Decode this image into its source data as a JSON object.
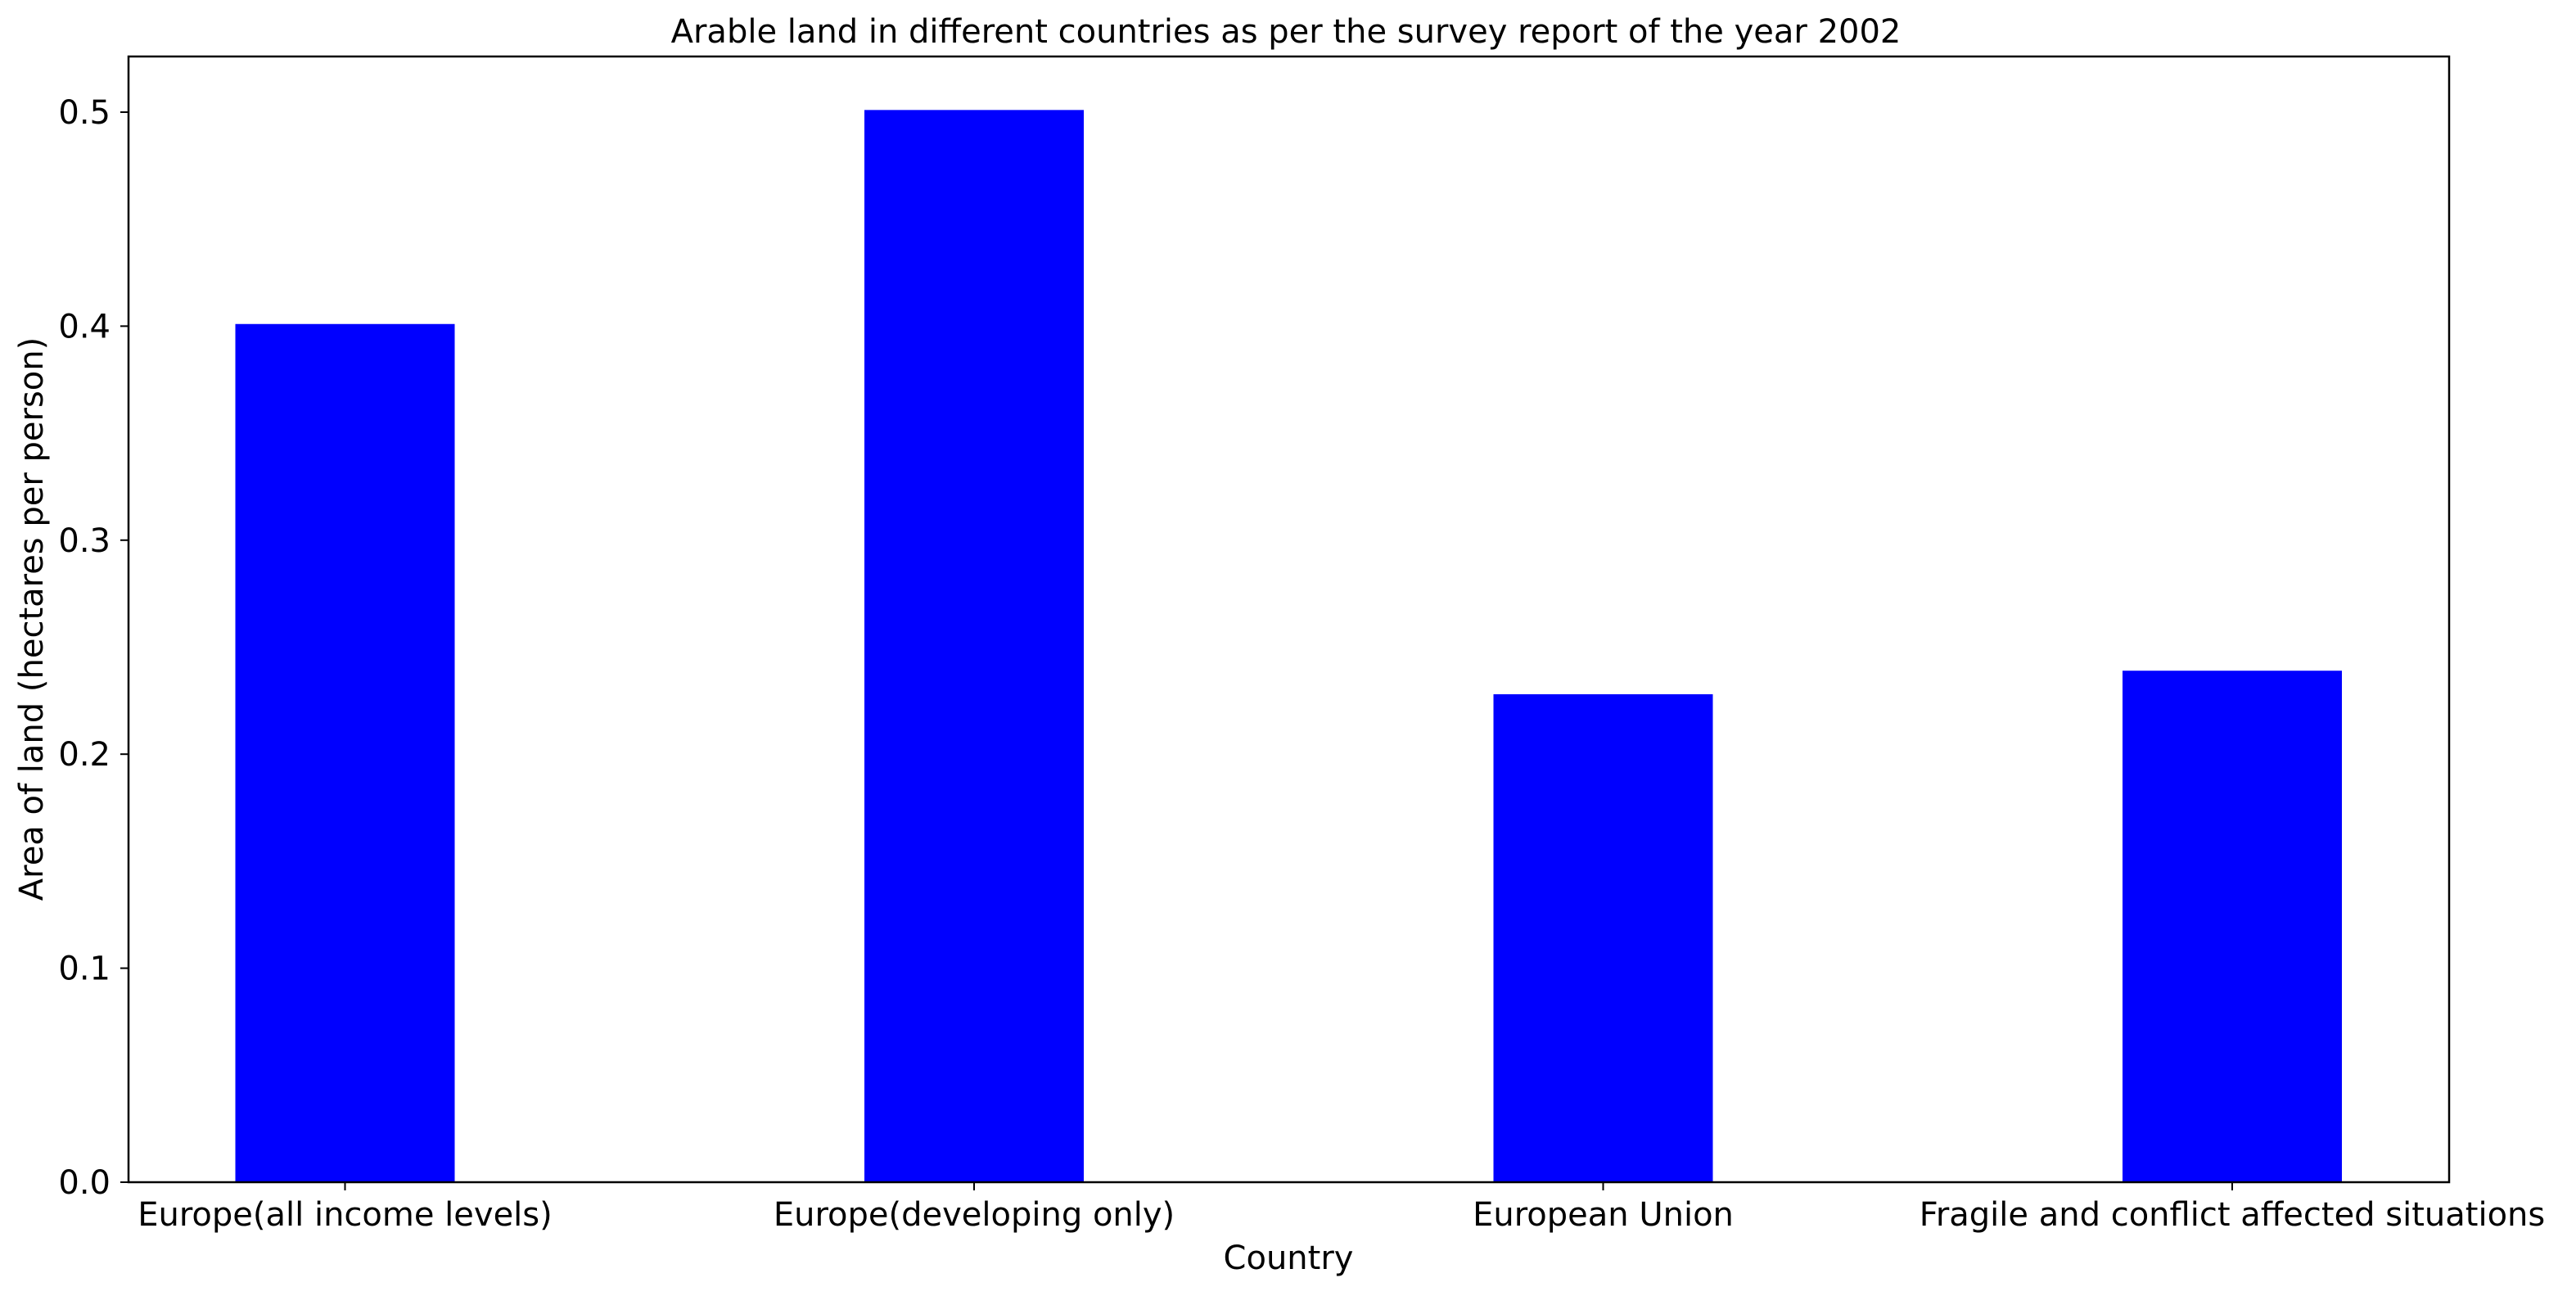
{
  "chart_data": {
    "type": "bar",
    "title": "Arable land in different countries as per the survey report of the year 2002",
    "xlabel": "Country",
    "ylabel": "Area of land (hectares per person)",
    "categories": [
      "Europe(all income levels)",
      "Europe(developing only)",
      "European Union",
      "Fragile and conflict affected situations"
    ],
    "values": [
      0.401,
      0.501,
      0.228,
      0.239
    ],
    "ylim": [
      0,
      0.526
    ],
    "yticks": [
      "0.0",
      "0.1",
      "0.2",
      "0.3",
      "0.4",
      "0.5"
    ],
    "bar_color": "#0000ff",
    "grid": false,
    "legend": "none"
  }
}
